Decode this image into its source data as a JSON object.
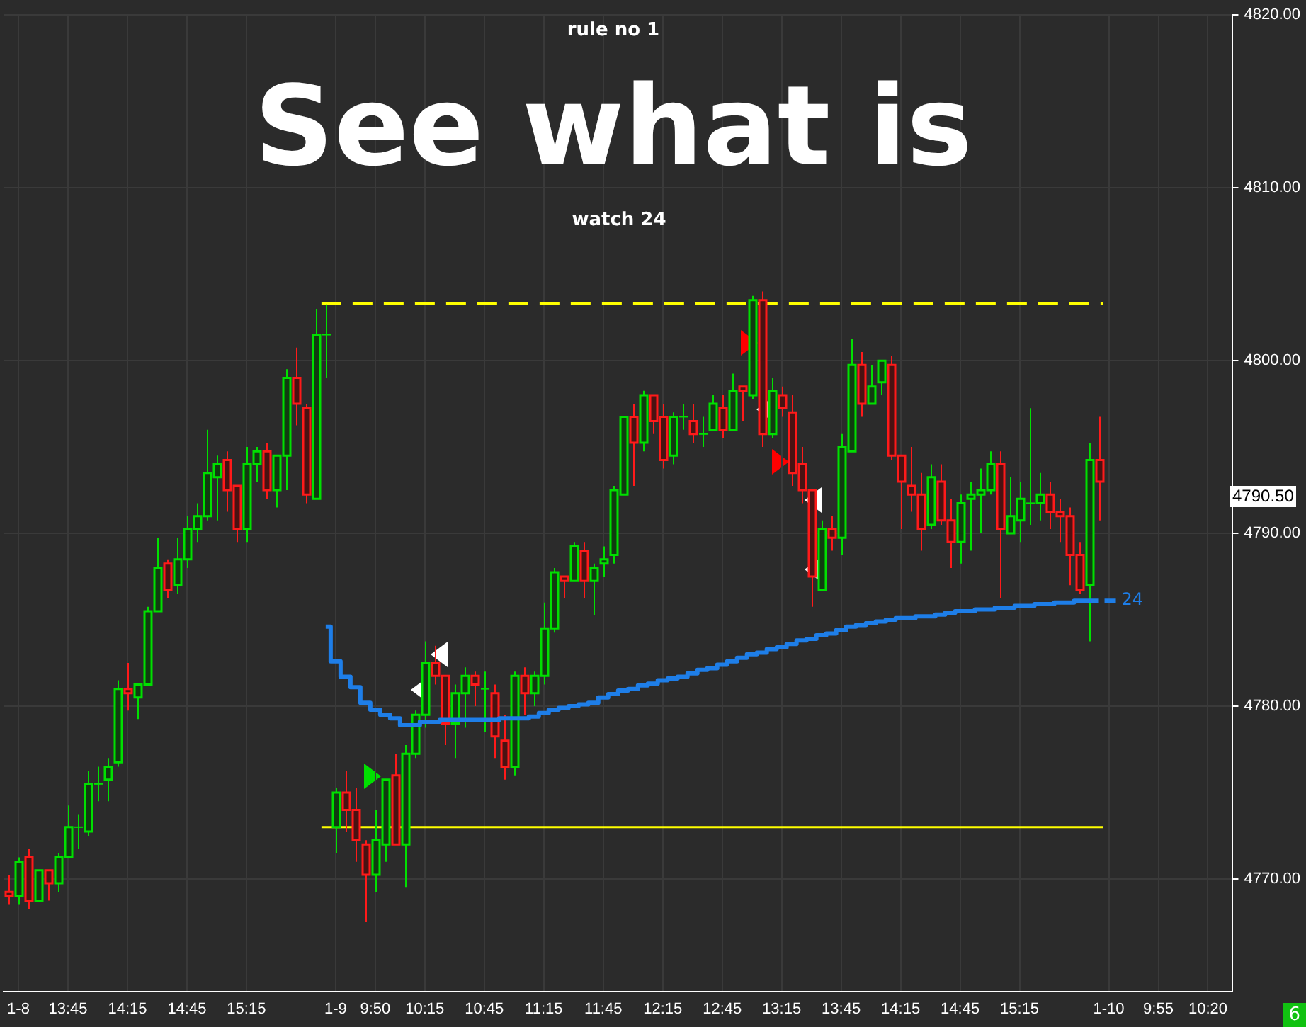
{
  "chart_data": {
    "type": "candlestick",
    "title": "See what is",
    "subtitle": "watch 24",
    "annotations": [
      "rule no 1",
      "6",
      "4790.50"
    ],
    "categories": [
      null,
      "1-8",
      null,
      null,
      null,
      null,
      "13:45",
      null,
      null,
      null,
      null,
      null,
      "14:15",
      null,
      null,
      null,
      null,
      null,
      "14:45",
      null,
      null,
      null,
      null,
      null,
      "15:15",
      null,
      null,
      null,
      null,
      null,
      null,
      null,
      null,
      "1-9",
      null,
      null,
      null,
      "9:50",
      null,
      null,
      null,
      null,
      "10:15",
      null,
      null,
      null,
      null,
      null,
      "10:45",
      null,
      null,
      null,
      null,
      null,
      "11:15",
      null,
      null,
      null,
      null,
      null,
      "11:45",
      null,
      null,
      null,
      null,
      null,
      "12:15",
      null,
      null,
      null,
      null,
      null,
      "12:45",
      null,
      null,
      null,
      null,
      null,
      "13:15",
      null,
      null,
      null,
      null,
      null,
      "13:45",
      null,
      null,
      null,
      null,
      null,
      "14:15",
      null,
      null,
      null,
      null,
      null,
      "14:45",
      null,
      null,
      null,
      null,
      null,
      "15:15",
      null,
      null,
      null,
      null,
      null,
      null,
      null,
      null,
      "1-10",
      null,
      null,
      null,
      null,
      "9:55",
      null,
      null,
      null,
      null,
      "10:20",
      null,
      null
    ],
    "ohlc": [
      [
        4769.25,
        4770.25,
        4768.5,
        4769
      ],
      [
        4769,
        4771.25,
        4768.5,
        4771
      ],
      [
        4771.25,
        4771.75,
        4768.25,
        4768.75
      ],
      [
        4768.75,
        4770.5,
        4768.75,
        4770.5
      ],
      [
        4770.5,
        4770.5,
        4768.75,
        4769.75
      ],
      [
        4769.75,
        4771.5,
        4769.25,
        4771.25
      ],
      [
        4771.25,
        4774.25,
        4771.25,
        4773
      ],
      [
        4773,
        4773.75,
        4771.75,
        4773
      ],
      [
        4772.75,
        4776.25,
        4772.5,
        4775.5
      ],
      [
        4775.5,
        4776.5,
        4774.5,
        4775.5
      ],
      [
        4775.75,
        4777,
        4774.5,
        4776.5
      ],
      [
        4776.75,
        4781.5,
        4776.5,
        4781
      ],
      [
        4781,
        4782.5,
        4779.75,
        4780.75
      ],
      [
        4780.5,
        4781.25,
        4779.25,
        4781.25
      ],
      [
        4781.25,
        4785.75,
        4781.25,
        4785.5
      ],
      [
        4785.5,
        4789.75,
        4785.5,
        4788
      ],
      [
        4788.25,
        4788.5,
        4786.25,
        4786.75
      ],
      [
        4787,
        4789.75,
        4786.5,
        4788.5
      ],
      [
        4788.5,
        4791,
        4788,
        4790.25
      ],
      [
        4790.25,
        4791.75,
        4789.5,
        4791
      ],
      [
        4791,
        4796,
        4790.75,
        4793.5
      ],
      [
        4793.25,
        4794.5,
        4790.75,
        4794
      ],
      [
        4794.25,
        4794.75,
        4791.25,
        4792.5
      ],
      [
        4792.75,
        4792.75,
        4789.5,
        4790.25
      ],
      [
        4790.25,
        4795,
        4789.5,
        4794
      ],
      [
        4794,
        4795,
        4793,
        4794.75
      ],
      [
        4794.75,
        4795.25,
        4792,
        4792.5
      ],
      [
        4792.5,
        4794.5,
        4791.5,
        4794.5
      ],
      [
        4794.5,
        4799.5,
        4792.5,
        4799
      ],
      [
        4799,
        4800.75,
        4796.25,
        4797.5
      ],
      [
        4797.25,
        4797.5,
        4791.75,
        4792.25
      ],
      [
        4792,
        4803,
        4792,
        4801.5
      ],
      [
        4801.5,
        4803.25,
        4799,
        4801.5
      ],
      [
        4773,
        4775.25,
        4771.5,
        4775
      ],
      [
        4775,
        4776.25,
        4772.75,
        4774
      ],
      [
        4774,
        4775.25,
        4771,
        4772.25
      ],
      [
        4772,
        4772.25,
        4767.5,
        4770.25
      ],
      [
        4770.25,
        4774,
        4769.25,
        4772.25
      ],
      [
        4772,
        4775.75,
        4771,
        4775.75
      ],
      [
        4776,
        4777.25,
        4772,
        4772
      ],
      [
        4772,
        4777.75,
        4769.5,
        4777.25
      ],
      [
        4777.25,
        4779.75,
        4777,
        4779.5
      ],
      [
        4779.5,
        4783.75,
        4778.75,
        4782.5
      ],
      [
        4782.5,
        4783.5,
        4781.25,
        4781.75
      ],
      [
        4781.75,
        4781.75,
        4777.75,
        4779
      ],
      [
        4779,
        4781.25,
        4777,
        4780.75
      ],
      [
        4780.75,
        4782.25,
        4778.75,
        4781.75
      ],
      [
        4781.75,
        4782,
        4780,
        4781.25
      ],
      [
        4781,
        4782,
        4778.5,
        4781
      ],
      [
        4780.75,
        4781.25,
        4777,
        4778.25
      ],
      [
        4778,
        4779.5,
        4775.75,
        4776.5
      ],
      [
        4776.5,
        4782,
        4776,
        4781.75
      ],
      [
        4781.75,
        4782.25,
        4779.5,
        4780.75
      ],
      [
        4780.75,
        4782,
        4780,
        4781.75
      ],
      [
        4781.75,
        4786,
        4781.25,
        4784.5
      ],
      [
        4784.5,
        4788,
        4784.25,
        4787.75
      ],
      [
        4787.5,
        4787.5,
        4786.25,
        4787.25
      ],
      [
        4787.25,
        4789.5,
        4787.25,
        4789.25
      ],
      [
        4789,
        4789.5,
        4786.25,
        4787.25
      ],
      [
        4787.25,
        4788.25,
        4785.25,
        4788
      ],
      [
        4788.25,
        4789.25,
        4787.5,
        4788.5
      ],
      [
        4788.75,
        4792.75,
        4788.25,
        4792.5
      ],
      [
        4792.25,
        4796.75,
        4792.25,
        4796.75
      ],
      [
        4796.75,
        4797.5,
        4792.75,
        4795.25
      ],
      [
        4795.25,
        4798.25,
        4794.75,
        4798
      ],
      [
        4798,
        4798,
        4795.75,
        4796.5
      ],
      [
        4796.75,
        4797.5,
        4793.75,
        4794.25
      ],
      [
        4794.5,
        4797,
        4794,
        4796.75
      ],
      [
        4796.75,
        4797.5,
        4796,
        4796.75
      ],
      [
        4796.5,
        4797.5,
        4795.25,
        4795.75
      ],
      [
        4795.75,
        4796.75,
        4795,
        4795.75
      ],
      [
        4796,
        4798,
        4796,
        4797.5
      ],
      [
        4797.25,
        4798,
        4795.5,
        4796
      ],
      [
        4796,
        4799.25,
        4796,
        4798.25
      ],
      [
        4798.5,
        4798.5,
        4796.5,
        4798.25
      ],
      [
        4798,
        4803.75,
        4797.75,
        4803.5
      ],
      [
        4803.5,
        4804,
        4795,
        4795.75
      ],
      [
        4795.75,
        4799,
        4795.5,
        4798.25
      ],
      [
        4798,
        4798.5,
        4796.75,
        4797.25
      ],
      [
        4797,
        4798,
        4792.75,
        4793.5
      ],
      [
        4794,
        4795,
        4791.75,
        4792.5
      ],
      [
        4792.5,
        4792.5,
        4785.75,
        4787.5
      ],
      [
        4786.75,
        4790.75,
        4786.75,
        4790.25
      ],
      [
        4790.25,
        4791,
        4789,
        4789.75
      ],
      [
        4789.75,
        4795.75,
        4788.75,
        4795
      ],
      [
        4794.75,
        4801.25,
        4794.75,
        4799.75
      ],
      [
        4799.75,
        4800.5,
        4796.75,
        4797.5
      ],
      [
        4797.5,
        4799.75,
        4797.5,
        4798.5
      ],
      [
        4798.75,
        4800,
        4798,
        4800
      ],
      [
        4799.75,
        4800.25,
        4794.25,
        4794.5
      ],
      [
        4794.5,
        4794.5,
        4790.25,
        4793
      ],
      [
        4792.75,
        4795,
        4791.25,
        4792.25
      ],
      [
        4792.25,
        4793.5,
        4789,
        4790.25
      ],
      [
        4790.5,
        4794,
        4790.25,
        4793.25
      ],
      [
        4793,
        4794,
        4790.5,
        4790.75
      ],
      [
        4790.75,
        4792,
        4788,
        4789.5
      ],
      [
        4789.5,
        4792.25,
        4788.25,
        4791.75
      ],
      [
        4792,
        4793,
        4789,
        4792.25
      ],
      [
        4792.25,
        4793.75,
        4790,
        4792.5
      ],
      [
        4792.5,
        4794.75,
        4792.25,
        4794
      ],
      [
        4794,
        4794.75,
        4786.25,
        4790.25
      ],
      [
        4790,
        4793.25,
        4790,
        4791
      ],
      [
        4790.75,
        4793,
        4789.5,
        4792
      ],
      [
        4791.75,
        4797.25,
        4790.5,
        4791.75
      ],
      [
        4791.75,
        4793.5,
        4790.75,
        4792.25
      ],
      [
        4792.25,
        4793,
        4790.25,
        4791.25
      ],
      [
        4791.25,
        4792,
        4789.5,
        4791
      ],
      [
        4791,
        4791.5,
        4787,
        4788.75
      ],
      [
        4788.75,
        4789.5,
        4786.5,
        4786.75
      ],
      [
        4787,
        4795.25,
        4783.75,
        4794.25
      ],
      [
        4794.25,
        4796.75,
        4790.75,
        4793
      ],
      null,
      null,
      null,
      null,
      null,
      null,
      null,
      null,
      null,
      null,
      null,
      null,
      null
    ],
    "series": [
      {
        "name": "24",
        "type": "step",
        "color": "#1e7ee8",
        "values": [
          null,
          null,
          null,
          null,
          null,
          null,
          null,
          null,
          null,
          null,
          null,
          null,
          null,
          null,
          null,
          null,
          null,
          null,
          null,
          null,
          null,
          null,
          null,
          null,
          null,
          null,
          null,
          null,
          null,
          null,
          null,
          null,
          4784.6,
          4782.6,
          4781.7,
          4781.1,
          4780.2,
          4779.8,
          4779.5,
          4779.3,
          4778.9,
          4778.9,
          4779.1,
          4779.1,
          4779.2,
          4779.2,
          4779.2,
          4779.2,
          4779.2,
          4779.2,
          4779.3,
          4779.3,
          4779.3,
          4779.4,
          4779.6,
          4779.8,
          4779.9,
          4780.0,
          4780.1,
          4780.2,
          4780.5,
          4780.7,
          4780.9,
          4781.0,
          4781.2,
          4781.3,
          4781.5,
          4781.6,
          4781.7,
          4781.9,
          4782.1,
          4782.2,
          4782.4,
          4782.6,
          4782.8,
          4783.0,
          4783.1,
          4783.3,
          4783.4,
          4783.6,
          4783.8,
          4783.9,
          4784.1,
          4784.2,
          4784.4,
          4784.6,
          4784.7,
          4784.8,
          4784.9,
          4785.0,
          4785.1,
          4785.1,
          4785.2,
          4785.2,
          4785.3,
          4785.4,
          4785.5,
          4785.5,
          4785.6,
          4785.6,
          4785.7,
          4785.7,
          4785.8,
          4785.8,
          4785.9,
          4785.9,
          4786.0,
          4786.0,
          4786.1,
          4786.1,
          4786.1,
          null,
          null,
          null,
          null,
          null,
          null,
          null,
          null,
          null,
          null,
          null,
          null,
          null
        ]
      }
    ],
    "ref_lines": [
      {
        "axis": "y",
        "value": 4803.3,
        "color": "#ffff00",
        "line_style": "dashed"
      },
      {
        "axis": "y",
        "value": 4773,
        "color": "#ffff00",
        "line_style": "solid"
      }
    ],
    "ylim": [
      4763.5,
      4820
    ],
    "yticks": [
      {
        "value": 4770,
        "label": "4770.00"
      },
      {
        "value": 4780,
        "label": "4780.00"
      },
      {
        "value": 4790,
        "label": "4790.00"
      },
      {
        "value": 4800,
        "label": "4800.00"
      },
      {
        "value": 4810,
        "label": "4810.00"
      },
      {
        "value": 4820,
        "label": "4820.00"
      }
    ],
    "grid": true,
    "legend": "right"
  }
}
